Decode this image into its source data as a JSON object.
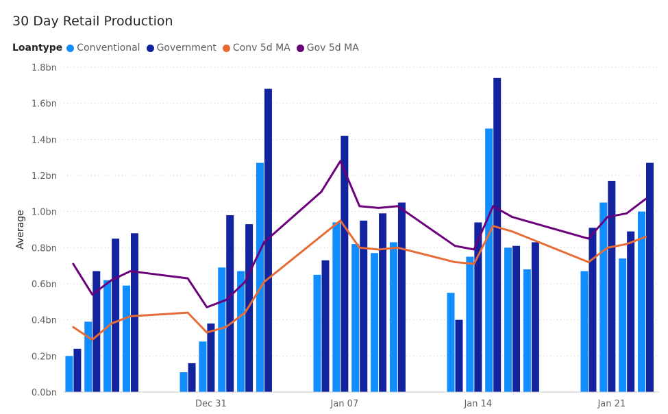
{
  "chart_data": {
    "type": "bar+line",
    "title": "30 Day Retail Production",
    "legend_title": "Loantype",
    "legend": [
      {
        "name": "Conventional",
        "color": "#118DFF"
      },
      {
        "name": "Government",
        "color": "#12239E"
      },
      {
        "name": "Conv 5d MA",
        "color": "#E66C37"
      },
      {
        "name": "Gov 5d MA",
        "color": "#6B007B"
      }
    ],
    "ylabel": "Average",
    "ylim": [
      0,
      1.8
    ],
    "yticks": [
      "0.0bn",
      "0.2bn",
      "0.4bn",
      "0.6bn",
      "0.8bn",
      "1.0bn",
      "1.2bn",
      "1.4bn",
      "1.6bn",
      "1.8bn"
    ],
    "xticks": [
      {
        "label": "Dec 31",
        "day": 7
      },
      {
        "label": "Jan 07",
        "day": 14
      },
      {
        "label": "Jan 14",
        "day": 21
      },
      {
        "label": "Jan 21",
        "day": 28
      }
    ],
    "x_domain": [
      -0.5,
      30.7
    ],
    "grid": true,
    "legend_position": "top-left",
    "series": [
      {
        "name": "Conventional",
        "kind": "bar",
        "color": "#118DFF",
        "points": [
          [
            0,
            0.2
          ],
          [
            1,
            0.39
          ],
          [
            2,
            0.62
          ],
          [
            3,
            0.59
          ],
          [
            6,
            0.11
          ],
          [
            7,
            0.28
          ],
          [
            8,
            0.69
          ],
          [
            9,
            0.67
          ],
          [
            10,
            1.27
          ],
          [
            13,
            0.65
          ],
          [
            14,
            0.94
          ],
          [
            15,
            0.82
          ],
          [
            16,
            0.77
          ],
          [
            17,
            0.83
          ],
          [
            20,
            0.55
          ],
          [
            21,
            0.75
          ],
          [
            22,
            1.46
          ],
          [
            23,
            0.8
          ],
          [
            24,
            0.68
          ],
          [
            27,
            0.67
          ],
          [
            28,
            1.05
          ],
          [
            29,
            0.74
          ],
          [
            30,
            1.0
          ]
        ]
      },
      {
        "name": "Government",
        "kind": "bar",
        "color": "#12239E",
        "points": [
          [
            0,
            0.24
          ],
          [
            1,
            0.67
          ],
          [
            2,
            0.85
          ],
          [
            3,
            0.88
          ],
          [
            6,
            0.16
          ],
          [
            7,
            0.38
          ],
          [
            8,
            0.98
          ],
          [
            9,
            0.93
          ],
          [
            10,
            1.68
          ],
          [
            13,
            0.73
          ],
          [
            14,
            1.42
          ],
          [
            15,
            0.95
          ],
          [
            16,
            0.99
          ],
          [
            17,
            1.05
          ],
          [
            20,
            0.4
          ],
          [
            21,
            0.94
          ],
          [
            22,
            1.74
          ],
          [
            23,
            0.81
          ],
          [
            24,
            0.83
          ],
          [
            27,
            0.91
          ],
          [
            28,
            1.17
          ],
          [
            29,
            0.89
          ],
          [
            30,
            1.27
          ]
        ]
      },
      {
        "name": "Conv 5d MA",
        "kind": "line",
        "color": "#E66C37",
        "points": [
          [
            0,
            0.36
          ],
          [
            1,
            0.29
          ],
          [
            2,
            0.38
          ],
          [
            3,
            0.42
          ],
          [
            6,
            0.44
          ],
          [
            7,
            0.33
          ],
          [
            8,
            0.36
          ],
          [
            9,
            0.44
          ],
          [
            10,
            0.61
          ],
          [
            14,
            0.95
          ],
          [
            15,
            0.8
          ],
          [
            16,
            0.79
          ],
          [
            17,
            0.8
          ],
          [
            20,
            0.72
          ],
          [
            21,
            0.71
          ],
          [
            22,
            0.92
          ],
          [
            23,
            0.89
          ],
          [
            27,
            0.72
          ],
          [
            28,
            0.8
          ],
          [
            29,
            0.82
          ],
          [
            30,
            0.86
          ]
        ]
      },
      {
        "name": "Gov 5d MA",
        "kind": "line",
        "color": "#6B007B",
        "points": [
          [
            0,
            0.71
          ],
          [
            1,
            0.54
          ],
          [
            2,
            0.62
          ],
          [
            3,
            0.67
          ],
          [
            6,
            0.63
          ],
          [
            7,
            0.47
          ],
          [
            8,
            0.51
          ],
          [
            9,
            0.61
          ],
          [
            10,
            0.83
          ],
          [
            13,
            1.11
          ],
          [
            14,
            1.28
          ],
          [
            15,
            1.03
          ],
          [
            16,
            1.02
          ],
          [
            17,
            1.03
          ],
          [
            20,
            0.81
          ],
          [
            21,
            0.79
          ],
          [
            22,
            1.03
          ],
          [
            23,
            0.97
          ],
          [
            27,
            0.85
          ],
          [
            28,
            0.97
          ],
          [
            29,
            0.99
          ],
          [
            30,
            1.07
          ]
        ]
      }
    ]
  }
}
